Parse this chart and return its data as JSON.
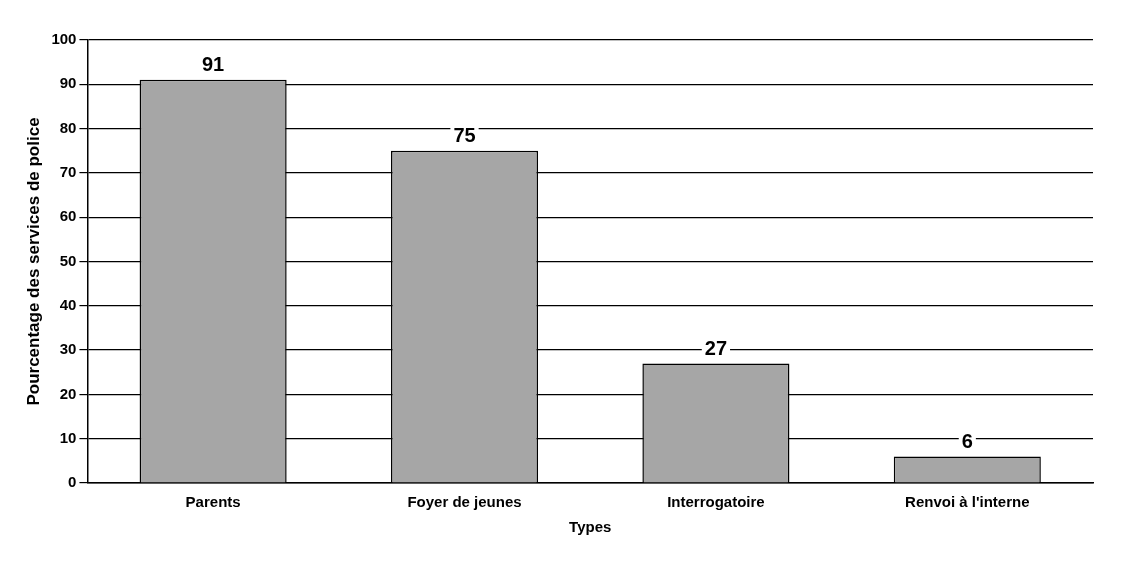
{
  "chart_data": {
    "type": "bar",
    "xlabel": "Types",
    "ylabel": "Pourcentage des services de police",
    "categories": [
      "Parents",
      "Foyer de jeunes",
      "Interrogatoire",
      "Renvoi à l'interne"
    ],
    "values": [
      91,
      75,
      27,
      6
    ],
    "color": "#a6a6a6",
    "ylim": [
      0,
      100
    ],
    "yticks": [
      0,
      10,
      20,
      30,
      40,
      50,
      60,
      70,
      80,
      90,
      100
    ],
    "grid": "y",
    "data_labels": true
  }
}
